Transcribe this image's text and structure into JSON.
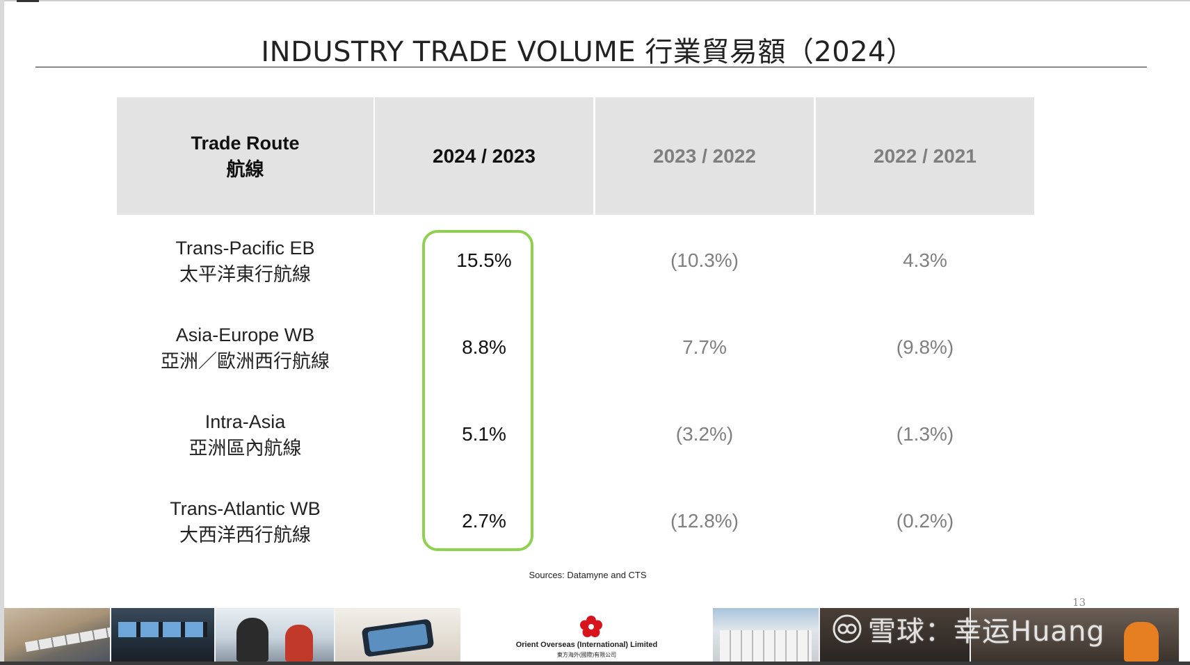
{
  "title": "INDUSTRY TRADE VOLUME 行業貿易額（2024）",
  "table": {
    "header": {
      "route_label_en": "Trade Route",
      "route_label_cn": "航線",
      "periods": [
        "2024 / 2023",
        "2023 / 2022",
        "2022 / 2021"
      ]
    },
    "rows": [
      {
        "route_en": "Trans-Pacific EB",
        "route_cn": "太平洋東行航線",
        "values": [
          "15.5%",
          "(10.3%)",
          "4.3%"
        ]
      },
      {
        "route_en": "Asia-Europe WB",
        "route_cn": "亞洲／歐洲西行航線",
        "values": [
          "8.8%",
          "7.7%",
          "(9.8%)"
        ]
      },
      {
        "route_en": "Intra-Asia",
        "route_cn": "亞洲區內航線",
        "values": [
          "5.1%",
          "(3.2%)",
          "(1.3%)"
        ]
      },
      {
        "route_en": "Trans-Atlantic WB",
        "route_cn": "大西洋西行航線",
        "values": [
          "2.7%",
          "(12.8%)",
          "(0.2%)"
        ]
      }
    ]
  },
  "sources": "Sources: Datamyne and CTS",
  "page_number": "13",
  "footer": {
    "company_name": "Orient Overseas (International) Limited",
    "company_name_cn": "東方海外(國際)有限公司",
    "watermark": "雪球：幸运Huang"
  },
  "colors": {
    "header_bg": "#e3e3e3",
    "highlight_border": "#8fd14f",
    "muted_text": "#7f7f7f",
    "logo_red": "#d7131c"
  }
}
